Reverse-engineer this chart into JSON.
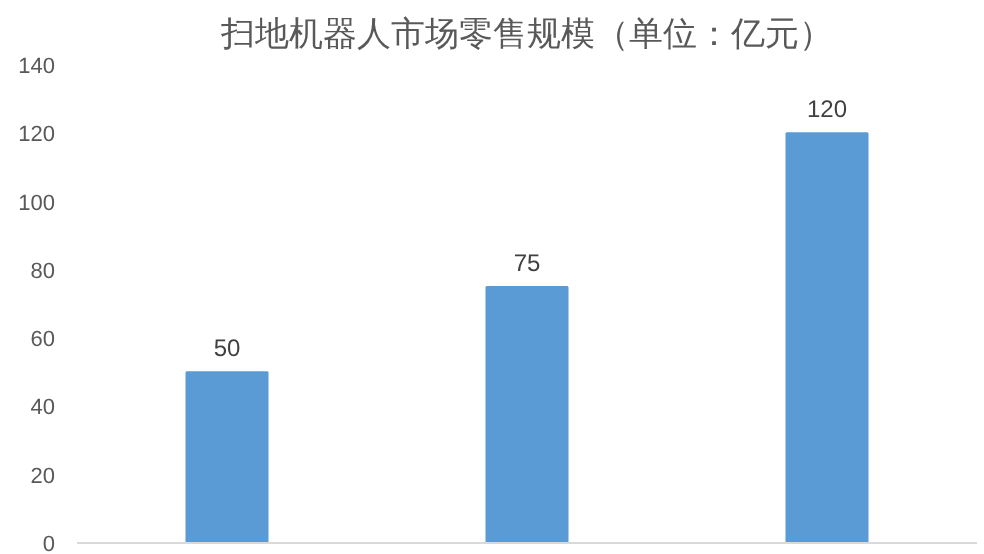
{
  "chart_data": {
    "type": "bar",
    "title": "扫地机器人市场零售规模（单位：亿元）",
    "categories": [
      null,
      null,
      null
    ],
    "values": [
      50,
      75,
      120
    ],
    "color": "#5b9bd5",
    "ylim": [
      0,
      140
    ],
    "yticks": [
      0,
      20,
      40,
      60,
      80,
      100,
      120,
      140
    ],
    "data_labels": true,
    "tick_labels": "y",
    "grid": false
  }
}
